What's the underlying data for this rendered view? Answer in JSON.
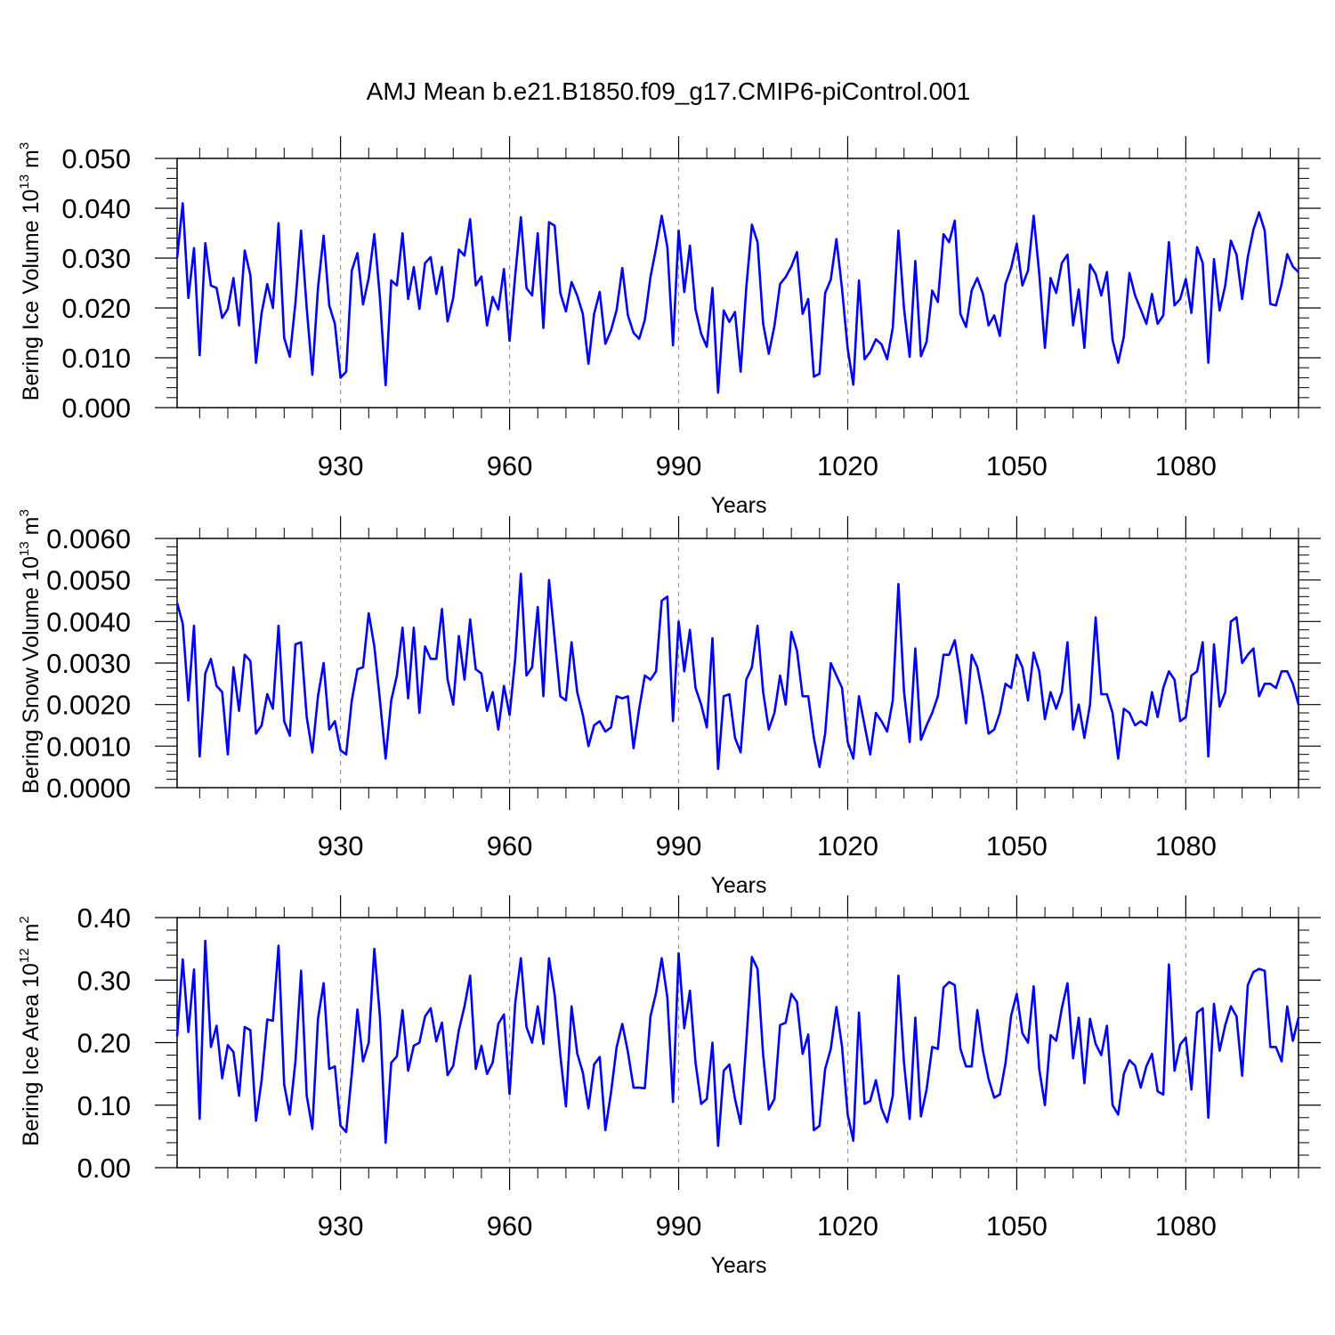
{
  "title": "AMJ Mean b.e21.B1850.f09_g17.CMIP6-piControl.001",
  "line_color": "#0000ff",
  "chart_data": [
    {
      "type": "line",
      "title": "AMJ Mean b.e21.B1850.f09_g17.CMIP6-piControl.001",
      "xlabel": "Years",
      "ylabel_main": "Bering Ice Volume 10",
      "ylabel_exp": "13",
      "ylabel_unit": " m",
      "ylabel_unit_exp": "3",
      "xlim": [
        901,
        1100
      ],
      "ylim": [
        0.0,
        0.05
      ],
      "x_ticks": [
        930,
        960,
        990,
        1020,
        1050,
        1080
      ],
      "x_tick_labels": [
        "930",
        "960",
        "990",
        "1020",
        "1050",
        "1080"
      ],
      "y_ticks": [
        0.0,
        0.01,
        0.02,
        0.03,
        0.04,
        0.05
      ],
      "y_tick_labels": [
        "0.000",
        "0.010",
        "0.020",
        "0.030",
        "0.040",
        "0.050"
      ],
      "x_start": 901,
      "series": [
        {
          "name": "Bering Ice Volume",
          "values": [
            0.03,
            0.041,
            0.022,
            0.032,
            0.0105,
            0.033,
            0.0245,
            0.024,
            0.018,
            0.0198,
            0.026,
            0.0165,
            0.0315,
            0.0266,
            0.009,
            0.019,
            0.0248,
            0.02,
            0.037,
            0.014,
            0.0102,
            0.021,
            0.0355,
            0.02,
            0.0066,
            0.024,
            0.0345,
            0.0205,
            0.0168,
            0.006,
            0.0072,
            0.0275,
            0.031,
            0.0207,
            0.026,
            0.0348,
            0.022,
            0.0045,
            0.0255,
            0.0245,
            0.035,
            0.0218,
            0.0282,
            0.0198,
            0.029,
            0.0302,
            0.0228,
            0.0282,
            0.0173,
            0.022,
            0.0317,
            0.0305,
            0.0378,
            0.0245,
            0.0263,
            0.0165,
            0.0222,
            0.0197,
            0.0278,
            0.0134,
            0.0266,
            0.0382,
            0.024,
            0.0225,
            0.035,
            0.016,
            0.0372,
            0.0365,
            0.023,
            0.0193,
            0.0252,
            0.0225,
            0.0188,
            0.0088,
            0.0188,
            0.0232,
            0.0128,
            0.0155,
            0.0196,
            0.028,
            0.0185,
            0.015,
            0.0138,
            0.0176,
            0.0262,
            0.032,
            0.0385,
            0.0322,
            0.0125,
            0.0355,
            0.0232,
            0.0325,
            0.0197,
            0.0148,
            0.0122,
            0.024,
            0.003,
            0.0195,
            0.0172,
            0.0192,
            0.0072,
            0.024,
            0.0367,
            0.0332,
            0.0168,
            0.0108,
            0.0164,
            0.0248,
            0.0262,
            0.0283,
            0.0312,
            0.0188,
            0.0218,
            0.0062,
            0.0068,
            0.023,
            0.0257,
            0.0338,
            0.0238,
            0.0118,
            0.0046,
            0.0255,
            0.0097,
            0.0112,
            0.0137,
            0.0127,
            0.0097,
            0.016,
            0.0355,
            0.0198,
            0.0102,
            0.0294,
            0.0103,
            0.0132,
            0.0235,
            0.0212,
            0.0348,
            0.0332,
            0.0375,
            0.0188,
            0.0162,
            0.0235,
            0.026,
            0.0228,
            0.0165,
            0.0185,
            0.0144,
            0.0248,
            0.028,
            0.0329,
            0.0245,
            0.0275,
            0.0385,
            0.0268,
            0.012,
            0.026,
            0.023,
            0.029,
            0.0307,
            0.0165,
            0.0237,
            0.012,
            0.0287,
            0.0268,
            0.0225,
            0.0272,
            0.0136,
            0.009,
            0.0142,
            0.027,
            0.0225,
            0.0197,
            0.0168,
            0.0228,
            0.0168,
            0.0185,
            0.0332,
            0.0205,
            0.0218,
            0.0258,
            0.019,
            0.0322,
            0.029,
            0.009,
            0.0298,
            0.0195,
            0.0245,
            0.0335,
            0.0307,
            0.0218,
            0.0302,
            0.0357,
            0.0392,
            0.0355,
            0.0208,
            0.0205,
            0.0248,
            0.0308,
            0.0283,
            0.0272
          ]
        }
      ]
    },
    {
      "type": "line",
      "xlabel": "Years",
      "ylabel_main": "Bering Snow Volume 10",
      "ylabel_exp": "13",
      "ylabel_unit": " m",
      "ylabel_unit_exp": "3",
      "xlim": [
        901,
        1100
      ],
      "ylim": [
        0.0,
        0.006
      ],
      "x_ticks": [
        930,
        960,
        990,
        1020,
        1050,
        1080
      ],
      "x_tick_labels": [
        "930",
        "960",
        "990",
        "1020",
        "1050",
        "1080"
      ],
      "y_ticks": [
        0.0,
        0.001,
        0.002,
        0.003,
        0.004,
        0.005,
        0.006
      ],
      "y_tick_labels": [
        "0.0000",
        "0.0010",
        "0.0020",
        "0.0030",
        "0.0040",
        "0.0050",
        "0.0060"
      ],
      "x_start": 901,
      "series": [
        {
          "name": "Bering Snow Volume",
          "values": [
            0.00445,
            0.00395,
            0.0021,
            0.0039,
            0.00075,
            0.00275,
            0.0031,
            0.00245,
            0.0023,
            0.0008,
            0.0029,
            0.00185,
            0.0032,
            0.00305,
            0.0013,
            0.0015,
            0.00225,
            0.0019,
            0.0039,
            0.0016,
            0.00125,
            0.00345,
            0.0035,
            0.0017,
            0.00085,
            0.0022,
            0.003,
            0.0014,
            0.0016,
            0.0009,
            0.0008,
            0.0021,
            0.00285,
            0.0029,
            0.0042,
            0.0034,
            0.0021,
            0.0007,
            0.0021,
            0.0027,
            0.00385,
            0.00215,
            0.00385,
            0.0018,
            0.0034,
            0.0031,
            0.0031,
            0.0043,
            0.0026,
            0.002,
            0.00365,
            0.0026,
            0.00405,
            0.00285,
            0.00275,
            0.00185,
            0.0023,
            0.0014,
            0.00245,
            0.00175,
            0.0031,
            0.00515,
            0.0027,
            0.0029,
            0.00435,
            0.0022,
            0.005,
            0.0036,
            0.0022,
            0.0021,
            0.0035,
            0.0023,
            0.00175,
            0.001,
            0.0015,
            0.0016,
            0.00135,
            0.00145,
            0.0022,
            0.00215,
            0.0022,
            0.00095,
            0.0019,
            0.0027,
            0.0026,
            0.0028,
            0.0045,
            0.0046,
            0.0016,
            0.004,
            0.0028,
            0.0038,
            0.0024,
            0.002,
            0.00145,
            0.0036,
            0.00045,
            0.0022,
            0.00225,
            0.0012,
            0.00085,
            0.0026,
            0.0029,
            0.0039,
            0.0023,
            0.0014,
            0.0018,
            0.0027,
            0.002,
            0.00375,
            0.0033,
            0.0022,
            0.0022,
            0.0012,
            0.0005,
            0.0013,
            0.003,
            0.0027,
            0.0024,
            0.0011,
            0.0007,
            0.0022,
            0.0015,
            0.0008,
            0.0018,
            0.0016,
            0.00135,
            0.0021,
            0.0049,
            0.0023,
            0.0011,
            0.00335,
            0.00115,
            0.0015,
            0.0018,
            0.0022,
            0.0032,
            0.0032,
            0.00355,
            0.0027,
            0.00155,
            0.0032,
            0.0029,
            0.0022,
            0.0013,
            0.0014,
            0.0018,
            0.0025,
            0.0024,
            0.0032,
            0.0029,
            0.0021,
            0.00325,
            0.0028,
            0.00165,
            0.0023,
            0.0019,
            0.0023,
            0.0035,
            0.0014,
            0.002,
            0.0012,
            0.002,
            0.0041,
            0.00225,
            0.00225,
            0.0018,
            0.0007,
            0.0019,
            0.0018,
            0.0015,
            0.0016,
            0.0015,
            0.0023,
            0.0017,
            0.0024,
            0.0028,
            0.0026,
            0.0016,
            0.0017,
            0.0027,
            0.0028,
            0.0035,
            0.00075,
            0.00345,
            0.00195,
            0.0023,
            0.004,
            0.0041,
            0.003,
            0.0032,
            0.00335,
            0.0022,
            0.0025,
            0.0025,
            0.0024,
            0.0028,
            0.0028,
            0.0025,
            0.002
          ]
        }
      ]
    },
    {
      "type": "line",
      "xlabel": "Years",
      "ylabel_main": "Bering Ice Area 10",
      "ylabel_exp": "12",
      "ylabel_unit": " m",
      "ylabel_unit_exp": "2",
      "xlim": [
        901,
        1100
      ],
      "ylim": [
        0.0,
        0.4
      ],
      "x_ticks": [
        930,
        960,
        990,
        1020,
        1050,
        1080
      ],
      "x_tick_labels": [
        "930",
        "960",
        "990",
        "1020",
        "1050",
        "1080"
      ],
      "y_ticks": [
        0.0,
        0.1,
        0.2,
        0.3,
        0.4
      ],
      "y_tick_labels": [
        "0.00",
        "0.10",
        "0.20",
        "0.30",
        "0.40"
      ],
      "x_start": 901,
      "series": [
        {
          "name": "Bering Ice Area",
          "values": [
            0.21,
            0.333,
            0.217,
            0.317,
            0.078,
            0.363,
            0.193,
            0.227,
            0.143,
            0.196,
            0.185,
            0.115,
            0.225,
            0.22,
            0.075,
            0.14,
            0.237,
            0.235,
            0.355,
            0.133,
            0.085,
            0.17,
            0.315,
            0.115,
            0.062,
            0.238,
            0.295,
            0.158,
            0.162,
            0.067,
            0.057,
            0.15,
            0.253,
            0.17,
            0.2,
            0.35,
            0.24,
            0.04,
            0.168,
            0.178,
            0.252,
            0.155,
            0.195,
            0.2,
            0.242,
            0.255,
            0.202,
            0.232,
            0.148,
            0.163,
            0.22,
            0.258,
            0.307,
            0.158,
            0.195,
            0.15,
            0.168,
            0.23,
            0.245,
            0.118,
            0.263,
            0.335,
            0.225,
            0.2,
            0.258,
            0.198,
            0.335,
            0.277,
            0.18,
            0.098,
            0.258,
            0.183,
            0.152,
            0.095,
            0.165,
            0.177,
            0.06,
            0.12,
            0.193,
            0.23,
            0.185,
            0.128,
            0.128,
            0.127,
            0.242,
            0.28,
            0.335,
            0.272,
            0.105,
            0.343,
            0.223,
            0.283,
            0.168,
            0.102,
            0.11,
            0.2,
            0.035,
            0.155,
            0.165,
            0.11,
            0.07,
            0.2,
            0.337,
            0.318,
            0.18,
            0.093,
            0.11,
            0.228,
            0.232,
            0.278,
            0.265,
            0.182,
            0.213,
            0.06,
            0.067,
            0.158,
            0.19,
            0.257,
            0.193,
            0.085,
            0.043,
            0.248,
            0.102,
            0.107,
            0.14,
            0.095,
            0.073,
            0.115,
            0.307,
            0.167,
            0.078,
            0.24,
            0.082,
            0.125,
            0.193,
            0.19,
            0.288,
            0.297,
            0.292,
            0.19,
            0.162,
            0.162,
            0.252,
            0.187,
            0.142,
            0.112,
            0.117,
            0.167,
            0.243,
            0.278,
            0.215,
            0.2,
            0.29,
            0.157,
            0.1,
            0.212,
            0.203,
            0.255,
            0.295,
            0.175,
            0.24,
            0.135,
            0.238,
            0.198,
            0.18,
            0.227,
            0.1,
            0.085,
            0.15,
            0.172,
            0.163,
            0.128,
            0.162,
            0.182,
            0.122,
            0.117,
            0.325,
            0.155,
            0.197,
            0.208,
            0.125,
            0.248,
            0.255,
            0.08,
            0.262,
            0.187,
            0.228,
            0.258,
            0.242,
            0.147,
            0.292,
            0.313,
            0.318,
            0.315,
            0.193,
            0.193,
            0.17,
            0.258,
            0.203,
            0.24
          ]
        }
      ]
    }
  ]
}
